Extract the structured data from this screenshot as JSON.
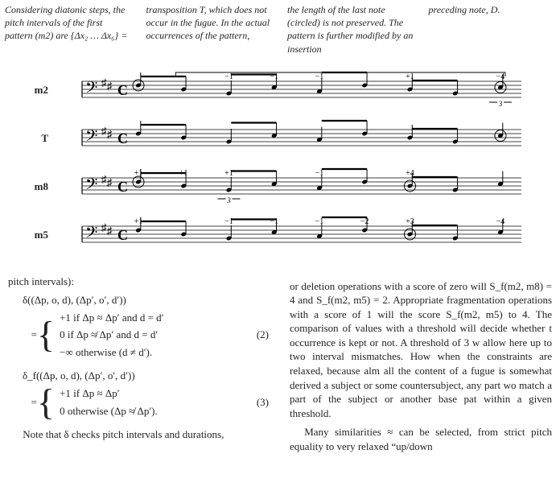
{
  "top_columns": {
    "c1": "Considering diatonic steps, the pitch intervals of the first pattern (m2) are {Δx₂ … Δx₆} =",
    "c2": "transposition T, which does not occur in the fugue. In the actual occurrences of the pattern,",
    "c3": "the length of the last note (circled) is not preserved. The pattern is further modified by an insertion",
    "c4": "preceding note, D."
  },
  "figure": {
    "bracket_top": true,
    "staffs": [
      {
        "label": "m2",
        "annotations": [
          "",
          "",
          "−1",
          "−1",
          "−1",
          "",
          "+1",
          "",
          "−4"
        ],
        "circles": [
          1,
          9
        ],
        "triplet_at": 8
      },
      {
        "label": "T",
        "annotations": [],
        "circles": [
          9
        ],
        "triplet_at": null
      },
      {
        "label": "m8",
        "annotations": [
          "+1",
          "+1",
          "+1",
          "",
          "−1",
          "",
          "+4",
          "",
          ""
        ],
        "circles": [
          1,
          7
        ],
        "triplet_at": 2
      },
      {
        "label": "m5",
        "annotations": [
          "+1",
          "",
          "−1",
          "−1",
          "−1",
          "−2",
          "+3",
          "",
          "−4"
        ],
        "circles": [
          7
        ],
        "triplet_at": null
      }
    ],
    "staff_color": "#000000",
    "key_sig_sharps": 2,
    "time_sig": "C"
  },
  "left_col": {
    "heading": "pitch intervals):",
    "eq2": {
      "lhs": "δ((Δp, o, d), (Δp′, o′, d′))",
      "cases": [
        "+1    if    Δp ≈ Δp′    and    d = d′",
        "0     if    Δp ≉ Δp′    and    d = d′",
        "−∞   otherwise (d ≠ d′)."
      ],
      "num": "(2)"
    },
    "eq3": {
      "lhs": "δ_f((Δp, o, d), (Δp′, o′, d′))",
      "cases": [
        "+1    if    Δp ≈ Δp′",
        "0     otherwise (Δp ≉ Δp′)."
      ],
      "num": "(3)"
    },
    "para": "Note that δ checks pitch intervals and durations,"
  },
  "right_col": {
    "p1": "or deletion operations with a score of zero will S_f(m2, m8) = 4 and S_f(m2, m5) = 2. Appropriate fragmentation operations with a score of 1 will the score S_f(m2, m5) to 4. The comparison of values with a threshold will decide whether t occurrence is kept or not. A threshold of 3 w allow here up to two interval mismatches. How when the constraints are relaxed, because alm all the content of a fugue is somewhat derived a subject or some countersubject, any part wo match a part of the subject or another base pat within a given threshold.",
    "p2": "Many similarities ≈ can be selected, from strict pitch equality to very relaxed “up/down"
  }
}
